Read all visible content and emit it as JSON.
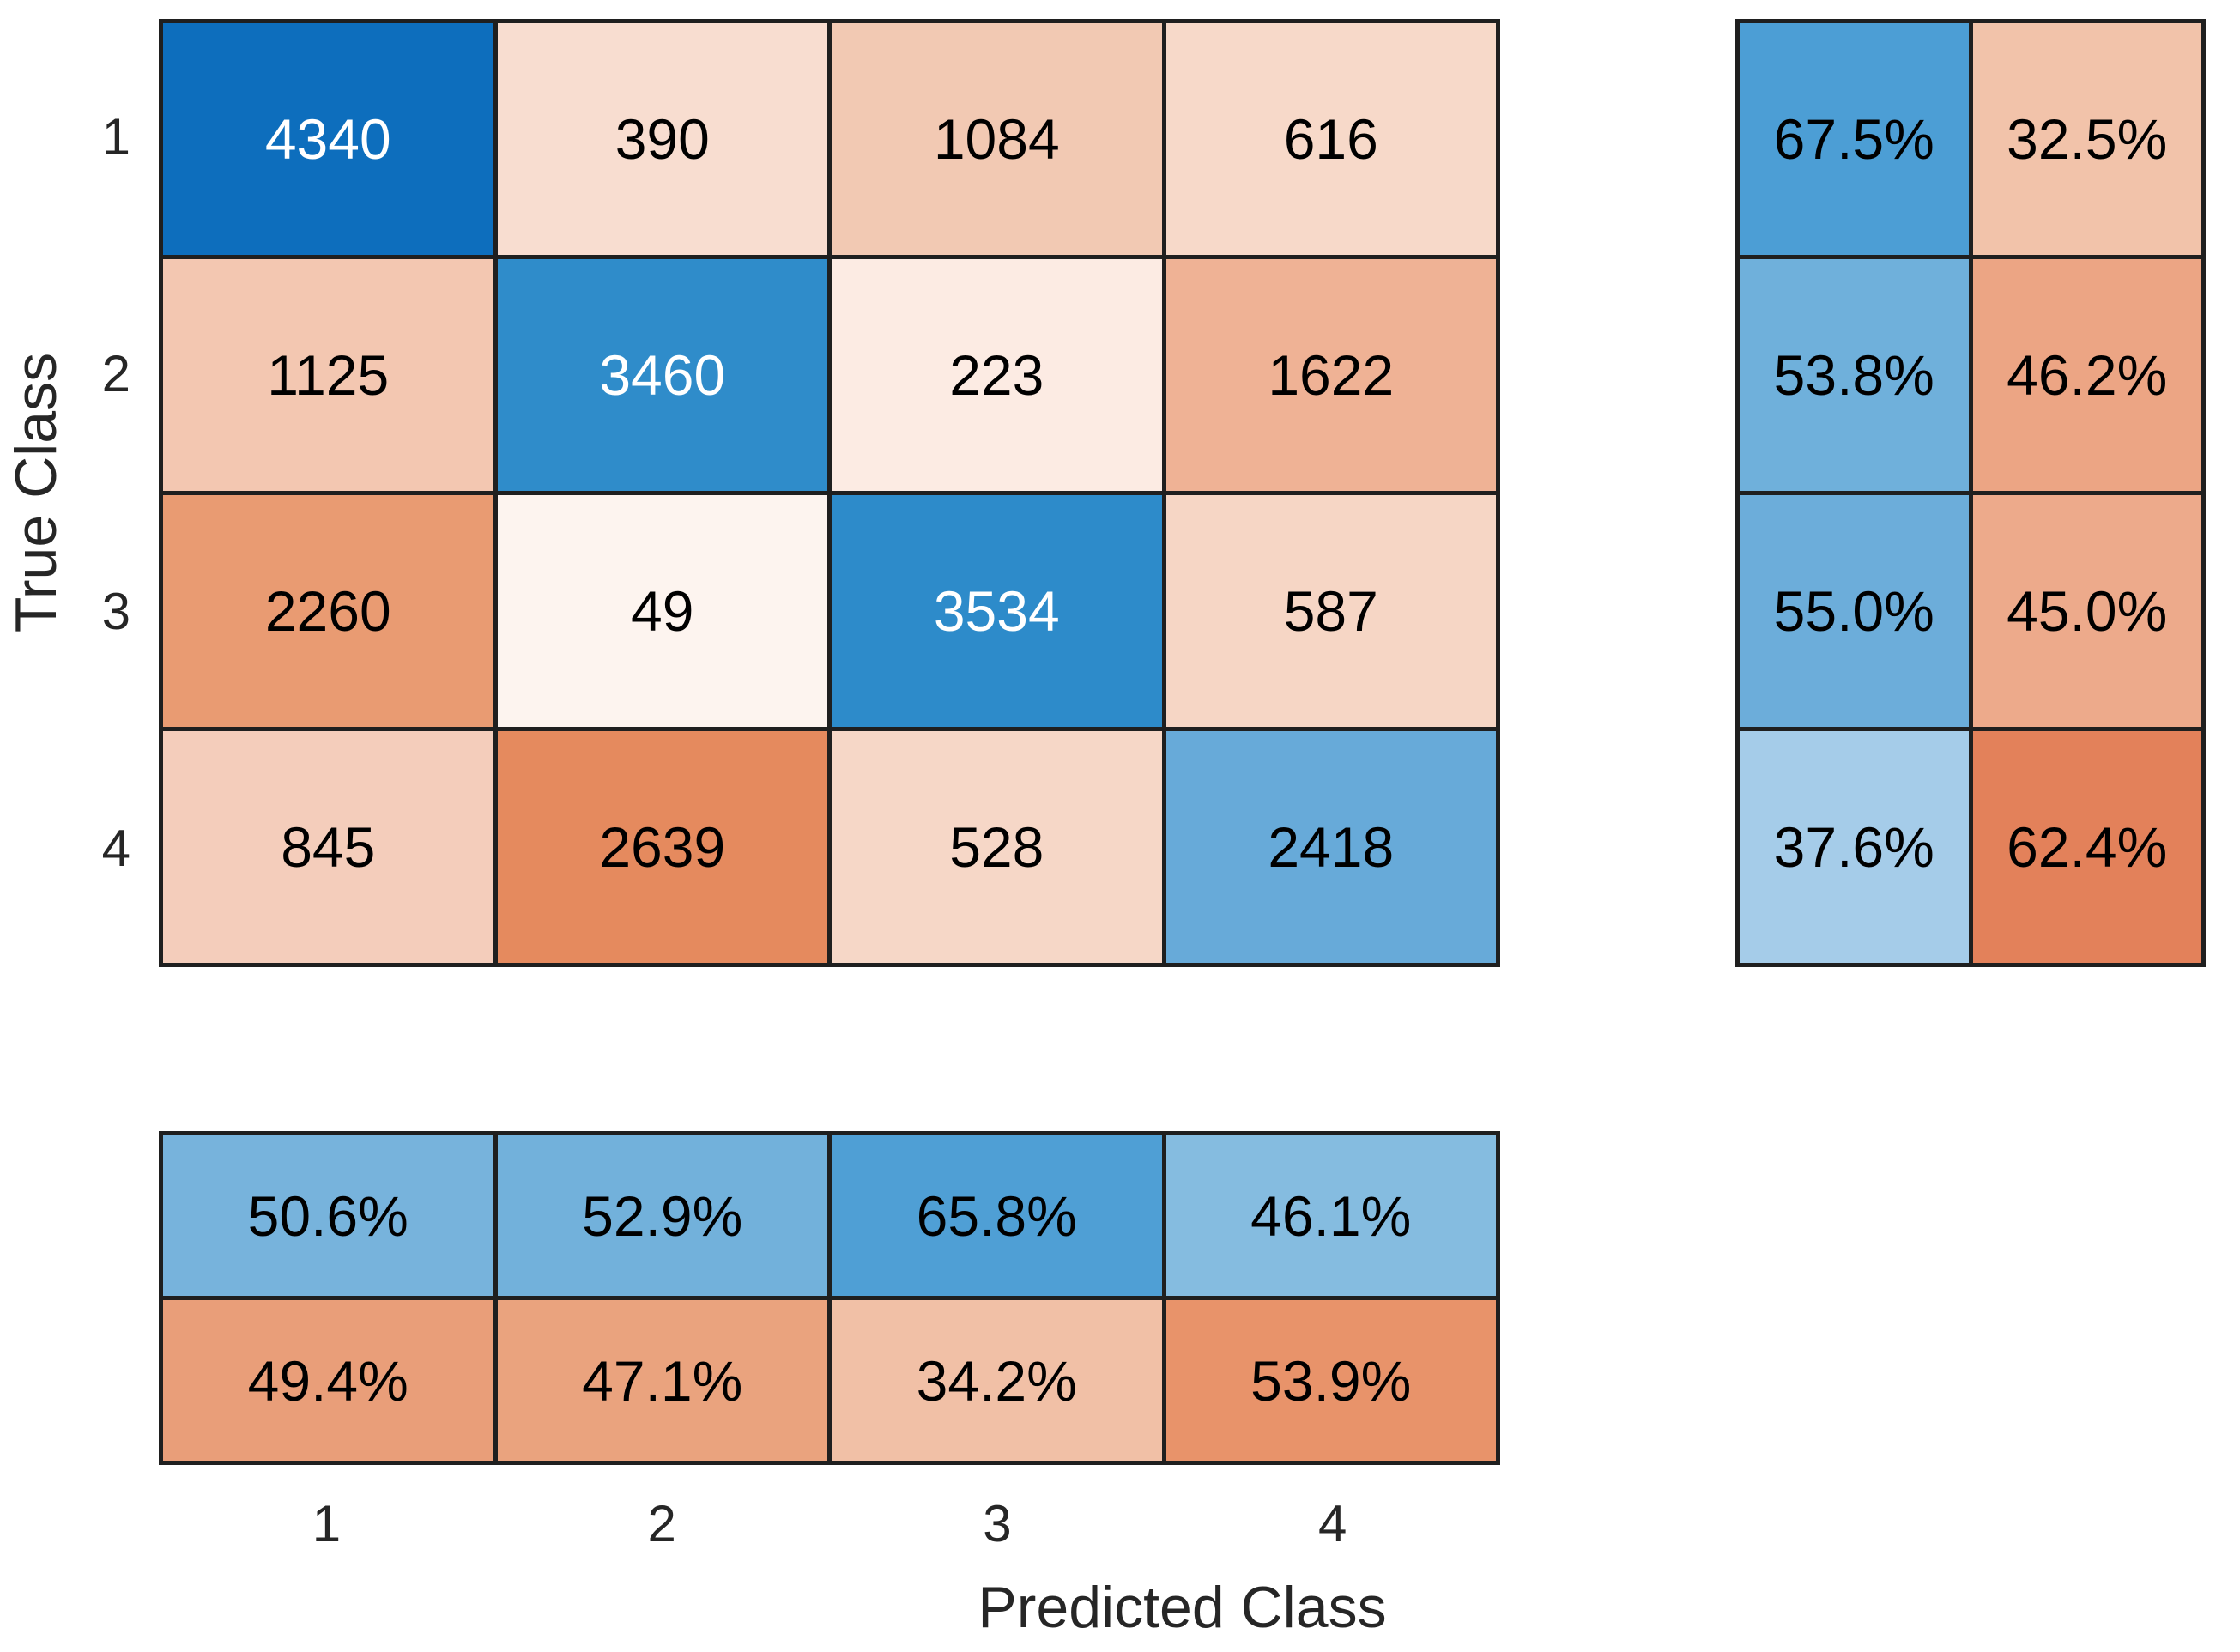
{
  "chart_data": {
    "type": "heatmap",
    "variant": "confusion-matrix-with-summaries",
    "title": "",
    "xlabel": "Predicted Class",
    "ylabel": "True Class",
    "x_tick_labels": [
      "1",
      "2",
      "3",
      "4"
    ],
    "y_tick_labels": [
      "1",
      "2",
      "3",
      "4"
    ],
    "matrix": {
      "rows": 4,
      "cols": 4,
      "values": [
        [
          4340,
          390,
          1084,
          616
        ],
        [
          1125,
          3460,
          223,
          1622
        ],
        [
          2260,
          49,
          3534,
          587
        ],
        [
          845,
          2639,
          528,
          2418
        ]
      ],
      "cell_colors": [
        [
          "#0d6ebd",
          "#f8ddd0",
          "#f2c9b3",
          "#f7d9c9"
        ],
        [
          "#f3c7b1",
          "#2f8cca",
          "#fcebe3",
          "#efb295"
        ],
        [
          "#e99b72",
          "#fdf4ef",
          "#2d8bca",
          "#f6d6c5"
        ],
        [
          "#f4cdbb",
          "#e58a5e",
          "#f6d7c7",
          "#67aad9"
        ]
      ]
    },
    "row_summary": {
      "position": "right",
      "description": "row-normalized percentages (correct vs incorrect per true class)",
      "labels": [
        [
          "67.5%",
          "32.5%"
        ],
        [
          "53.8%",
          "46.2%"
        ],
        [
          "55.0%",
          "45.0%"
        ],
        [
          "37.6%",
          "62.4%"
        ]
      ],
      "values": [
        [
          67.5,
          32.5
        ],
        [
          53.8,
          46.2
        ],
        [
          55.0,
          45.0
        ],
        [
          37.6,
          62.4
        ]
      ],
      "cell_colors": [
        [
          "#4c9ed5",
          "#f2c3aa"
        ],
        [
          "#6fb0db",
          "#eca584"
        ],
        [
          "#6cadda",
          "#edaa8b"
        ],
        [
          "#a5cce9",
          "#e3815a"
        ]
      ]
    },
    "column_summary": {
      "position": "bottom",
      "description": "column-normalized percentages (correct vs incorrect per predicted class)",
      "labels": [
        [
          "50.6%",
          "52.9%",
          "65.8%",
          "46.1%"
        ],
        [
          "49.4%",
          "47.1%",
          "34.2%",
          "53.9%"
        ]
      ],
      "values": [
        [
          50.6,
          52.9,
          65.8,
          46.1
        ],
        [
          49.4,
          47.1,
          34.2,
          53.9
        ]
      ],
      "cell_colors": [
        [
          "#77b3dc",
          "#72b1db",
          "#4f9fd5",
          "#85bce0"
        ],
        [
          "#e99e79",
          "#eaa37e",
          "#f1c0a6",
          "#e8936a"
        ]
      ]
    },
    "styles": {
      "grid_line_color": "#1f1f1f",
      "axis_text_color": "#262626",
      "cell_text_dark": "#000000",
      "cell_text_light": "#ffffff",
      "background": "#ffffff"
    }
  }
}
